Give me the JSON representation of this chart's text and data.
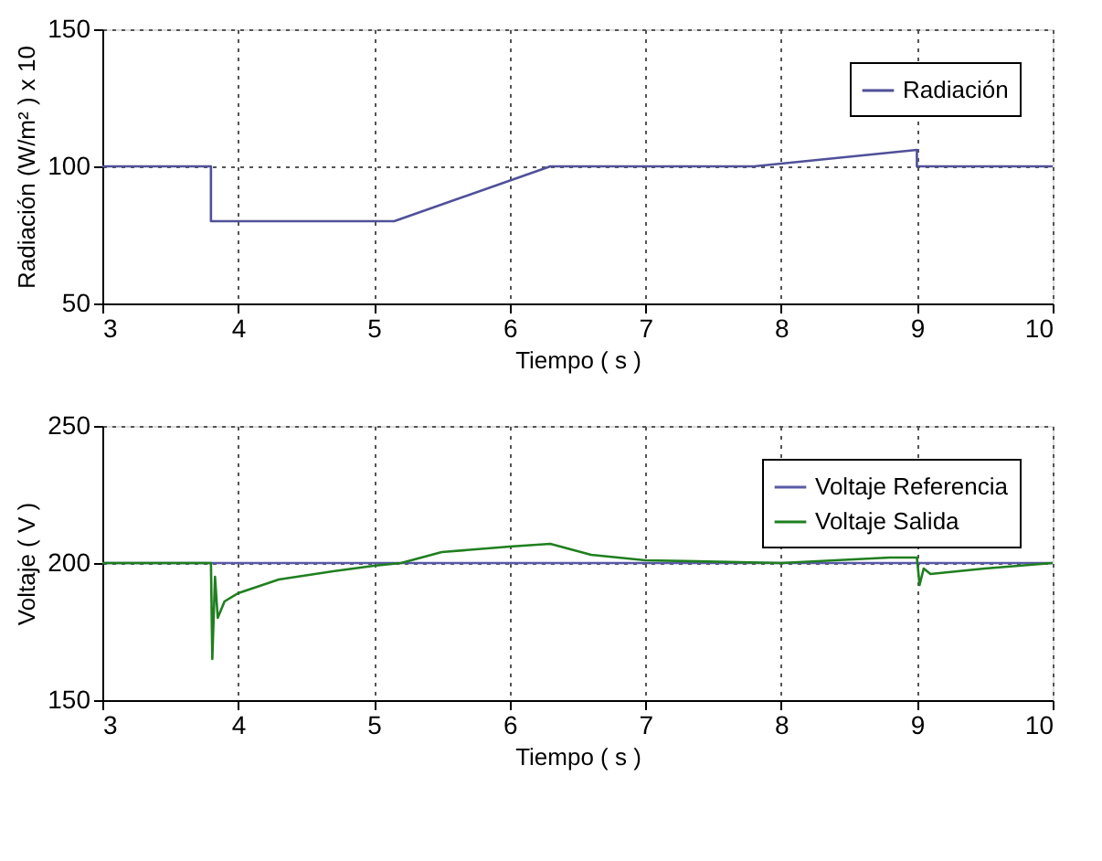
{
  "chart_data": [
    {
      "type": "line",
      "xlabel": "Tiempo ( s )",
      "ylabel": "Radiación (W/m² ) x 10",
      "xlim": [
        3,
        10
      ],
      "xticks": [
        3,
        4,
        5,
        6,
        7,
        8,
        9,
        10
      ],
      "ylim": [
        50,
        150
      ],
      "yticks": [
        50,
        100,
        150
      ],
      "grid": true,
      "legend": "top right",
      "series": [
        {
          "name": "Radiación",
          "color": "#50509a",
          "x": [
            3,
            3.8,
            3.8,
            5.15,
            6.3,
            7.8,
            9.0,
            9.0,
            10
          ],
          "values": [
            100,
            100,
            80,
            80,
            100,
            100,
            106,
            100,
            100
          ]
        }
      ]
    },
    {
      "type": "line",
      "xlabel": "Tiempo ( s )",
      "ylabel": "Voltaje ( V )",
      "xlim": [
        3,
        10
      ],
      "xticks": [
        3,
        4,
        5,
        6,
        7,
        8,
        9,
        10
      ],
      "ylim": [
        150,
        250
      ],
      "yticks": [
        150,
        200,
        250
      ],
      "grid": true,
      "legend": "top right",
      "series": [
        {
          "name": "Voltaje Referencia",
          "color": "#5a5aa8",
          "x": [
            3,
            10
          ],
          "values": [
            200,
            200
          ]
        },
        {
          "name": "Voltaje Salida",
          "color": "#1f7f1f",
          "x": [
            3,
            3.8,
            3.81,
            3.83,
            3.85,
            3.9,
            4.0,
            4.3,
            4.7,
            5.0,
            5.2,
            5.5,
            6.0,
            6.3,
            6.6,
            7.0,
            8.0,
            8.8,
            9.0,
            9.02,
            9.05,
            9.1,
            9.5,
            10
          ],
          "values": [
            200,
            200,
            165,
            195,
            180,
            186,
            189,
            194,
            197,
            199,
            200,
            204,
            206,
            207,
            203,
            201,
            200,
            202,
            202,
            192,
            198,
            196,
            198,
            200
          ]
        }
      ]
    }
  ]
}
